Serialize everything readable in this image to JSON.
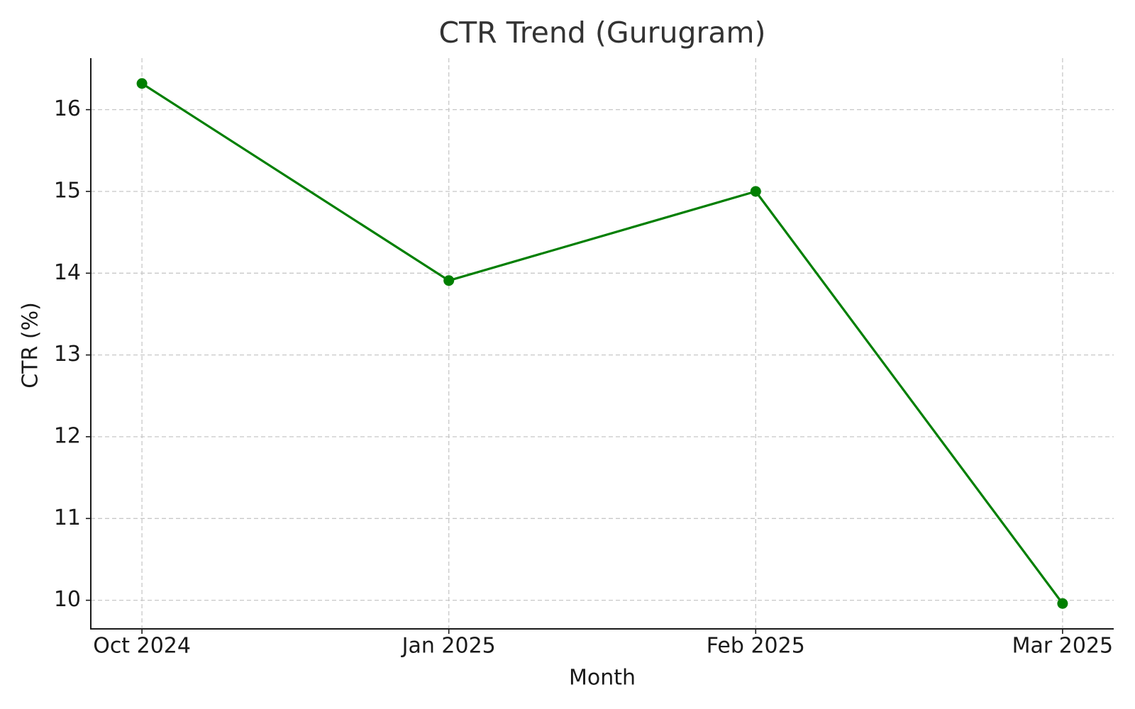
{
  "chart_data": {
    "type": "line",
    "title": "CTR Trend (Gurugram)",
    "x_label": "Month",
    "y_label": "CTR (%)",
    "categories": [
      "Oct 2024",
      "Jan 2025",
      "Feb 2025",
      "Mar 2025"
    ],
    "values": [
      16.32,
      13.91,
      15.0,
      9.96
    ],
    "color": "#007f00",
    "ylim": [
      9.65,
      16.63
    ],
    "yticks": [
      10,
      11,
      12,
      13,
      14,
      15,
      16
    ],
    "grid": true
  }
}
